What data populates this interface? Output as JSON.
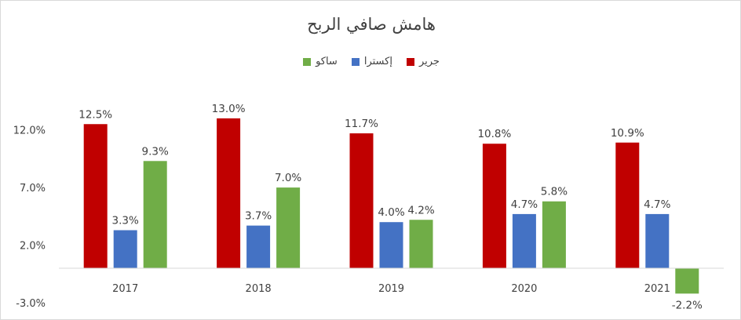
{
  "chart_data": {
    "type": "bar",
    "title": "هامش صافي الربح",
    "categories": [
      "2017",
      "2018",
      "2019",
      "2020",
      "2021"
    ],
    "series": [
      {
        "name": "جرير",
        "color": "#C00000",
        "values": [
          12.5,
          13.0,
          11.7,
          10.8,
          10.9
        ],
        "labels": [
          "12.5%",
          "13.0%",
          "11.7%",
          "10.8%",
          "10.9%"
        ]
      },
      {
        "name": "إكسترا",
        "color": "#4472C4",
        "values": [
          3.3,
          3.7,
          4.0,
          4.7,
          4.7
        ],
        "labels": [
          "3.3%",
          "3.7%",
          "4.0%",
          "4.7%",
          "4.7%"
        ]
      },
      {
        "name": "ساكو",
        "color": "#70AD47",
        "values": [
          9.3,
          7.0,
          4.2,
          5.8,
          -2.2
        ],
        "labels": [
          "9.3%",
          "7.0%",
          "4.2%",
          "5.8%",
          "-2.2%"
        ]
      }
    ],
    "y_ticks": [
      12.0,
      7.0,
      2.0,
      -3.0
    ],
    "y_tick_labels": [
      "12.0%",
      "7.0%",
      "2.0%",
      "-3.0%"
    ],
    "legend_position": "top-center",
    "grid": false
  }
}
